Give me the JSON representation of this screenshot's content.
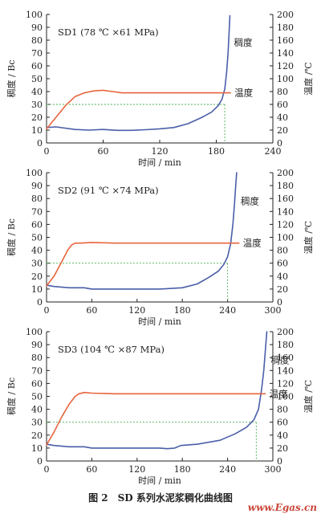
{
  "caption": "图 2　SD 系列水泥浆稠化曲线图",
  "watermark": "www.Egas.cn",
  "colors": {
    "consistency": "#4a5ea8",
    "temperature": "#e8643c",
    "guide": "#4caf50",
    "axis": "#222222"
  },
  "chart_data": [
    {
      "type": "line",
      "title": "SD1 (78 ℃ ×61 MPa)",
      "xlabel": "时间 / min",
      "ylabel_left": "稠度 / Bc",
      "ylabel_right": "温度 /℃",
      "xlim": [
        0,
        240
      ],
      "ylim_left": [
        0,
        100
      ],
      "ylim_right": [
        0,
        200
      ],
      "xticks": [
        0,
        60,
        120,
        180,
        240
      ],
      "yticks_left": [
        0,
        10,
        20,
        30,
        40,
        50,
        60,
        70,
        80,
        90,
        100
      ],
      "yticks_right": [
        0,
        20,
        40,
        60,
        80,
        100,
        120,
        140,
        160,
        180,
        200
      ],
      "series": [
        {
          "name": "稠度",
          "axis": "left",
          "x": [
            0,
            10,
            30,
            45,
            60,
            75,
            90,
            105,
            120,
            135,
            150,
            165,
            175,
            182,
            186,
            189,
            191,
            192.5,
            193.5,
            194.5
          ],
          "values": [
            12,
            12.5,
            10.5,
            10,
            10.5,
            9.8,
            9.8,
            10.3,
            11,
            12,
            15,
            20,
            24,
            29,
            34,
            42,
            55,
            70,
            85,
            99
          ]
        },
        {
          "name": "温度",
          "axis": "right",
          "x": [
            0,
            10,
            20,
            30,
            40,
            50,
            60,
            70,
            80,
            100,
            140,
            180,
            195
          ],
          "values": [
            22,
            40,
            58,
            72,
            78,
            81,
            82,
            80,
            78,
            78,
            78,
            78,
            78
          ]
        }
      ],
      "guide": {
        "x": 189,
        "y": 30
      },
      "labels": {
        "consistency": "稠度",
        "temperature": "温度"
      }
    },
    {
      "type": "line",
      "title": "SD2 (91 ℃ ×74 MPa)",
      "xlabel": "时间 / min",
      "ylabel_left": "稠度 / Bc",
      "ylabel_right": "温度 /℃",
      "xlim": [
        0,
        300
      ],
      "ylim_left": [
        0,
        100
      ],
      "ylim_right": [
        0,
        200
      ],
      "xticks": [
        0,
        60,
        120,
        180,
        240,
        300
      ],
      "yticks_left": [
        0,
        10,
        20,
        30,
        40,
        50,
        60,
        70,
        80,
        90,
        100
      ],
      "yticks_right": [
        0,
        20,
        40,
        60,
        80,
        100,
        120,
        140,
        160,
        180,
        200
      ],
      "series": [
        {
          "name": "稠度",
          "axis": "left",
          "x": [
            0,
            10,
            30,
            50,
            60,
            90,
            120,
            150,
            180,
            200,
            215,
            228,
            235,
            240,
            244,
            247,
            249,
            250.5,
            252
          ],
          "values": [
            13,
            12,
            11,
            11,
            10,
            10,
            10,
            10,
            11,
            14,
            19,
            24,
            29,
            35,
            45,
            60,
            75,
            88,
            100
          ]
        },
        {
          "name": "温度",
          "axis": "right",
          "x": [
            0,
            10,
            20,
            28,
            33,
            38,
            45,
            60,
            90,
            150,
            210,
            255
          ],
          "values": [
            25,
            40,
            62,
            80,
            88,
            91,
            91,
            92,
            91,
            91,
            91,
            91
          ]
        }
      ],
      "guide": {
        "x": 240,
        "y": 30
      },
      "labels": {
        "consistency": "稠度",
        "temperature": "温度"
      }
    },
    {
      "type": "line",
      "title": "SD3 (104 ℃ ×87 MPa)",
      "xlabel": "时间 / min",
      "ylabel_left": "稠度 / Bc",
      "ylabel_right": "温度 /℃",
      "xlim": [
        0,
        300
      ],
      "ylim_left": [
        0,
        100
      ],
      "ylim_right": [
        0,
        200
      ],
      "xticks": [
        0,
        60,
        120,
        180,
        240,
        300
      ],
      "yticks_left": [
        0,
        10,
        20,
        30,
        40,
        50,
        60,
        70,
        80,
        90,
        100
      ],
      "yticks_right": [
        0,
        20,
        40,
        60,
        80,
        100,
        120,
        140,
        160,
        180,
        200
      ],
      "series": [
        {
          "name": "稠度",
          "axis": "left",
          "x": [
            0,
            10,
            30,
            50,
            60,
            90,
            120,
            150,
            160,
            170,
            178,
            200,
            230,
            250,
            265,
            275,
            281,
            285,
            288,
            290,
            292
          ],
          "values": [
            13,
            12,
            11,
            11,
            10,
            10,
            10,
            10,
            9.5,
            10,
            12,
            13,
            16,
            21,
            26,
            32,
            40,
            55,
            70,
            85,
            100
          ]
        },
        {
          "name": "温度",
          "axis": "right",
          "x": [
            0,
            10,
            20,
            30,
            38,
            43,
            50,
            60,
            90,
            150,
            210,
            290
          ],
          "values": [
            25,
            45,
            68,
            88,
            100,
            104,
            106,
            105,
            104,
            104,
            104,
            104
          ]
        }
      ],
      "guide": {
        "x": 278,
        "y": 30
      },
      "labels": {
        "consistency": "稠度",
        "temperature": "温度"
      }
    }
  ]
}
